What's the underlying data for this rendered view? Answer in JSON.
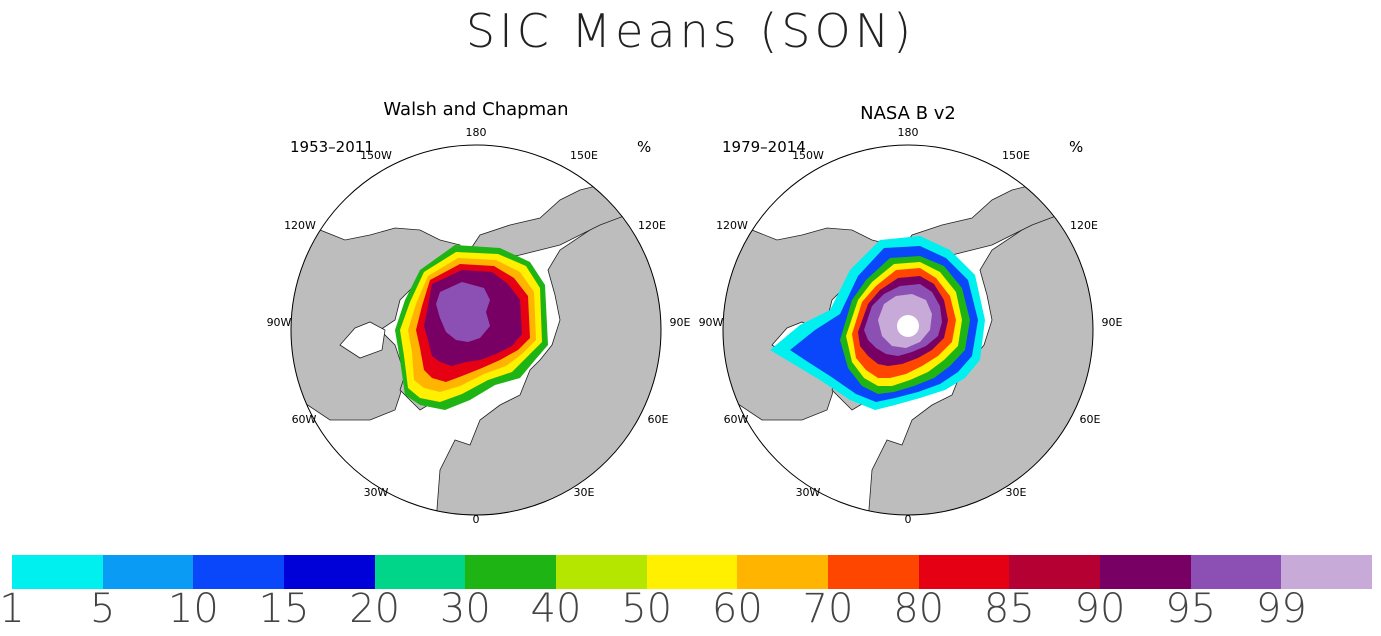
{
  "title": "SIC Means (SON)",
  "panels": [
    {
      "name": "Walsh and Chapman",
      "period": "1953–2011",
      "unit": "%"
    },
    {
      "name": "NASA B v2",
      "period": "1979–2014",
      "unit": "%"
    }
  ],
  "longitude_labels": [
    "180",
    "150E",
    "120E",
    "90E",
    "60E",
    "30E",
    "0",
    "30W",
    "60W",
    "90W",
    "120W",
    "150W"
  ],
  "colorbar": {
    "colors": [
      "#00f0f0",
      "#0a9cf5",
      "#0a46fa",
      "#0000d8",
      "#00d68a",
      "#1eb414",
      "#b4e600",
      "#fff000",
      "#ffb400",
      "#ff4600",
      "#e60014",
      "#b40032",
      "#780064",
      "#8c50b4",
      "#c8aad8"
    ],
    "tick_labels": [
      "1",
      "5",
      "10",
      "15",
      "20",
      "30",
      "40",
      "50",
      "60",
      "70",
      "80",
      "85",
      "90",
      "95",
      "99"
    ]
  }
}
